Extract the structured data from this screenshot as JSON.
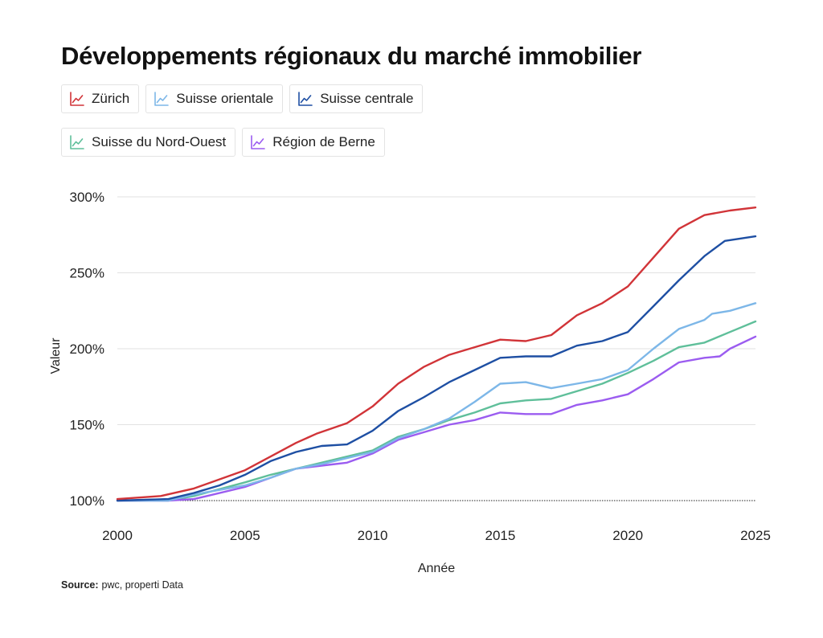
{
  "chart_data": {
    "type": "line",
    "title": "Développements régionaux du marché immobilier",
    "xlabel": "Année",
    "ylabel": "Valeur",
    "xlim": [
      2000,
      2025
    ],
    "ylim": [
      100,
      300
    ],
    "x_ticks": [
      2000,
      2005,
      2010,
      2015,
      2020,
      2025
    ],
    "y_ticks": [
      100,
      150,
      200,
      250,
      300
    ],
    "y_tick_labels": [
      "100%",
      "150%",
      "200%",
      "250%",
      "300%"
    ],
    "x_tick_labels": [
      "2000",
      "2005",
      "2010",
      "2015",
      "2020",
      "2025"
    ],
    "grid": true,
    "legend_position": "top-left",
    "series": [
      {
        "name": "Zürich",
        "color": "#d13438",
        "points": [
          [
            2000,
            101
          ],
          [
            2001.7,
            103
          ],
          [
            2003,
            108
          ],
          [
            2005,
            120
          ],
          [
            2006,
            129
          ],
          [
            2007,
            138
          ],
          [
            2007.8,
            144
          ],
          [
            2009,
            151
          ],
          [
            2010,
            162
          ],
          [
            2011,
            177
          ],
          [
            2012,
            188
          ],
          [
            2013,
            196
          ],
          [
            2014,
            201
          ],
          [
            2015,
            206
          ],
          [
            2016,
            205
          ],
          [
            2017,
            209
          ],
          [
            2018,
            222
          ],
          [
            2019,
            230
          ],
          [
            2020,
            241
          ],
          [
            2021,
            260
          ],
          [
            2022,
            279
          ],
          [
            2023,
            288
          ],
          [
            2024,
            291
          ],
          [
            2025,
            293
          ]
        ]
      },
      {
        "name": "Suisse orientale",
        "color": "#7db7e8",
        "points": [
          [
            2000,
            100
          ],
          [
            2002,
            100
          ],
          [
            2003,
            104
          ],
          [
            2005,
            110
          ],
          [
            2006,
            115
          ],
          [
            2007,
            121
          ],
          [
            2008,
            124
          ],
          [
            2009,
            128
          ],
          [
            2010,
            132
          ],
          [
            2011,
            141
          ],
          [
            2012,
            147
          ],
          [
            2013,
            154
          ],
          [
            2014,
            165
          ],
          [
            2015,
            177
          ],
          [
            2016,
            178
          ],
          [
            2017,
            174
          ],
          [
            2018,
            177
          ],
          [
            2019,
            180
          ],
          [
            2020,
            186
          ],
          [
            2021,
            200
          ],
          [
            2022,
            213
          ],
          [
            2023,
            219
          ],
          [
            2023.3,
            223
          ],
          [
            2024,
            225
          ],
          [
            2025,
            230
          ]
        ]
      },
      {
        "name": "Suisse centrale",
        "color": "#1e4fa3",
        "points": [
          [
            2000,
            100
          ],
          [
            2002,
            101
          ],
          [
            2003,
            105
          ],
          [
            2004,
            110
          ],
          [
            2005,
            117
          ],
          [
            2006,
            126
          ],
          [
            2007,
            132
          ],
          [
            2008,
            136
          ],
          [
            2009,
            137
          ],
          [
            2010,
            146
          ],
          [
            2011,
            159
          ],
          [
            2012,
            168
          ],
          [
            2013,
            178
          ],
          [
            2014,
            186
          ],
          [
            2015,
            194
          ],
          [
            2016,
            195
          ],
          [
            2017,
            195
          ],
          [
            2018,
            202
          ],
          [
            2019,
            205
          ],
          [
            2020,
            211
          ],
          [
            2021,
            228
          ],
          [
            2022,
            245
          ],
          [
            2023,
            261
          ],
          [
            2023.8,
            271
          ],
          [
            2025,
            274
          ]
        ]
      },
      {
        "name": "Suisse du Nord-Ouest",
        "color": "#5fbf9a",
        "points": [
          [
            2000,
            100
          ],
          [
            2002,
            100
          ],
          [
            2003,
            103
          ],
          [
            2005,
            112
          ],
          [
            2006,
            117
          ],
          [
            2007,
            121
          ],
          [
            2008,
            125
          ],
          [
            2009,
            129
          ],
          [
            2010,
            133
          ],
          [
            2011,
            142
          ],
          [
            2012,
            147
          ],
          [
            2013,
            153
          ],
          [
            2014,
            158
          ],
          [
            2015,
            164
          ],
          [
            2016,
            166
          ],
          [
            2017,
            167
          ],
          [
            2018,
            172
          ],
          [
            2019,
            177
          ],
          [
            2020,
            184
          ],
          [
            2021,
            192
          ],
          [
            2022,
            201
          ],
          [
            2023,
            204
          ],
          [
            2024,
            211
          ],
          [
            2025,
            218
          ]
        ]
      },
      {
        "name": "Région de Berne",
        "color": "#9b5cf0",
        "points": [
          [
            2000,
            100
          ],
          [
            2002,
            100
          ],
          [
            2003,
            101
          ],
          [
            2005,
            109
          ],
          [
            2006,
            115
          ],
          [
            2007,
            121
          ],
          [
            2008,
            123
          ],
          [
            2009,
            125
          ],
          [
            2010,
            131
          ],
          [
            2011,
            140
          ],
          [
            2012,
            145
          ],
          [
            2013,
            150
          ],
          [
            2014,
            153
          ],
          [
            2015,
            158
          ],
          [
            2016,
            157
          ],
          [
            2017,
            157
          ],
          [
            2018,
            163
          ],
          [
            2019,
            166
          ],
          [
            2020,
            170
          ],
          [
            2021,
            180
          ],
          [
            2022,
            191
          ],
          [
            2023,
            194
          ],
          [
            2023.6,
            195
          ],
          [
            2024,
            200
          ],
          [
            2025,
            208
          ]
        ]
      }
    ]
  },
  "source": {
    "label": "Source:",
    "text": "pwc, properti Data"
  }
}
